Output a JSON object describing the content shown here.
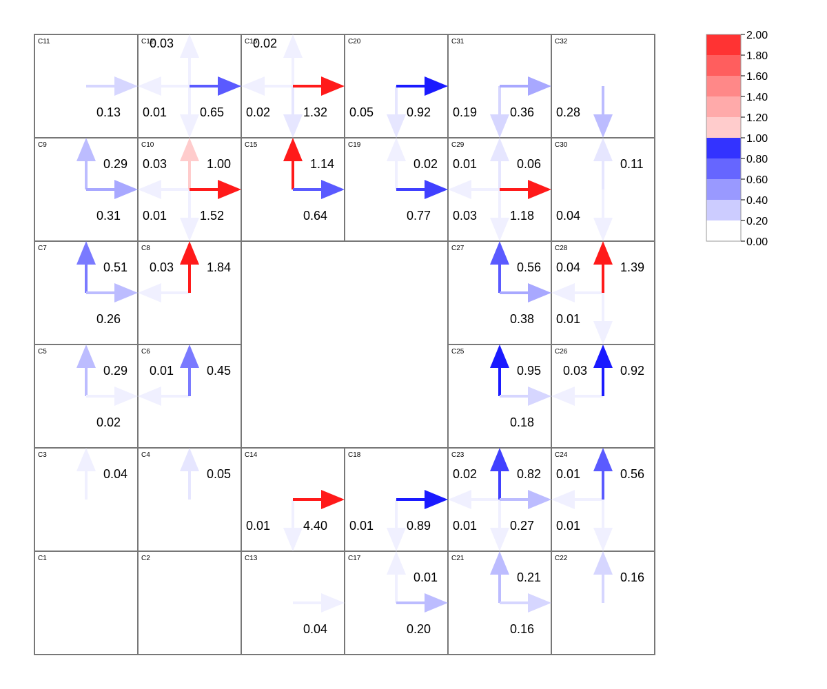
{
  "grid": {
    "cells": [
      {
        "id": "C11",
        "row": 0,
        "col": 0
      },
      {
        "id": "C12",
        "row": 0,
        "col": 1
      },
      {
        "id": "C16",
        "row": 0,
        "col": 2
      },
      {
        "id": "C20",
        "row": 0,
        "col": 3
      },
      {
        "id": "C31",
        "row": 0,
        "col": 4
      },
      {
        "id": "C32",
        "row": 0,
        "col": 5
      },
      {
        "id": "C9",
        "row": 1,
        "col": 0
      },
      {
        "id": "C10",
        "row": 1,
        "col": 1
      },
      {
        "id": "C15",
        "row": 1,
        "col": 2
      },
      {
        "id": "C19",
        "row": 1,
        "col": 3
      },
      {
        "id": "C29",
        "row": 1,
        "col": 4
      },
      {
        "id": "C30",
        "row": 1,
        "col": 5
      },
      {
        "id": "C7",
        "row": 2,
        "col": 0
      },
      {
        "id": "C8",
        "row": 2,
        "col": 1
      },
      {
        "id": "C27",
        "row": 2,
        "col": 4
      },
      {
        "id": "C28",
        "row": 2,
        "col": 5
      },
      {
        "id": "C5",
        "row": 3,
        "col": 0
      },
      {
        "id": "C6",
        "row": 3,
        "col": 1
      },
      {
        "id": "C25",
        "row": 3,
        "col": 4
      },
      {
        "id": "C26",
        "row": 3,
        "col": 5
      },
      {
        "id": "C3",
        "row": 4,
        "col": 0
      },
      {
        "id": "C4",
        "row": 4,
        "col": 1
      },
      {
        "id": "C14",
        "row": 4,
        "col": 2
      },
      {
        "id": "C18",
        "row": 4,
        "col": 3
      },
      {
        "id": "C23",
        "row": 4,
        "col": 4
      },
      {
        "id": "C24",
        "row": 4,
        "col": 5
      },
      {
        "id": "C1",
        "row": 5,
        "col": 0
      },
      {
        "id": "C2",
        "row": 5,
        "col": 1
      },
      {
        "id": "C13",
        "row": 5,
        "col": 2
      },
      {
        "id": "C17",
        "row": 5,
        "col": 3
      },
      {
        "id": "C21",
        "row": 5,
        "col": 4
      },
      {
        "id": "C22",
        "row": 5,
        "col": 5
      }
    ],
    "flows": [
      {
        "row": 0,
        "col": 0,
        "dir": "E",
        "value": 0.13,
        "label": "0.13"
      },
      {
        "row": 0,
        "col": 1,
        "dir": "W",
        "value": 0.01,
        "label": "0.01"
      },
      {
        "row": 0,
        "col": 1,
        "dir": "N",
        "value": 0.03,
        "label": "0.03"
      },
      {
        "row": 0,
        "col": 1,
        "dir": "S",
        "value": 0.03,
        "label": ""
      },
      {
        "row": 0,
        "col": 1,
        "dir": "E",
        "value": 0.65,
        "label": "0.65"
      },
      {
        "row": 0,
        "col": 2,
        "dir": "W",
        "value": 0.02,
        "label": "0.02"
      },
      {
        "row": 0,
        "col": 2,
        "dir": "N",
        "value": 0.02,
        "label": "0.02"
      },
      {
        "row": 0,
        "col": 2,
        "dir": "S",
        "value": 0.05,
        "label": ""
      },
      {
        "row": 0,
        "col": 2,
        "dir": "E",
        "value": 1.32,
        "label": "1.32"
      },
      {
        "row": 0,
        "col": 3,
        "dir": "S",
        "value": 0.05,
        "label": "0.05"
      },
      {
        "row": 0,
        "col": 3,
        "dir": "E",
        "value": 0.92,
        "label": "0.92"
      },
      {
        "row": 0,
        "col": 4,
        "dir": "S",
        "value": 0.19,
        "label": "0.19"
      },
      {
        "row": 0,
        "col": 4,
        "dir": "E",
        "value": 0.36,
        "label": "0.36"
      },
      {
        "row": 0,
        "col": 5,
        "dir": "S",
        "value": 0.28,
        "label": "0.28"
      },
      {
        "row": 1,
        "col": 0,
        "dir": "N",
        "value": 0.29,
        "label": "0.29"
      },
      {
        "row": 1,
        "col": 0,
        "dir": "E",
        "value": 0.31,
        "label": "0.31"
      },
      {
        "row": 1,
        "col": 1,
        "dir": "W",
        "value": 0.01,
        "label": "0.01"
      },
      {
        "row": 1,
        "col": 1,
        "dir": "S",
        "value": 0.03,
        "label": "0.03"
      },
      {
        "row": 1,
        "col": 1,
        "dir": "N",
        "value": 1.0,
        "label": "1.00"
      },
      {
        "row": 1,
        "col": 1,
        "dir": "E",
        "value": 1.52,
        "label": "1.52"
      },
      {
        "row": 1,
        "col": 2,
        "dir": "N",
        "value": 1.14,
        "label": "1.14"
      },
      {
        "row": 1,
        "col": 2,
        "dir": "E",
        "value": 0.64,
        "label": "0.64"
      },
      {
        "row": 1,
        "col": 3,
        "dir": "N",
        "value": 0.02,
        "label": "0.02"
      },
      {
        "row": 1,
        "col": 3,
        "dir": "E",
        "value": 0.77,
        "label": "0.77"
      },
      {
        "row": 1,
        "col": 4,
        "dir": "W",
        "value": 0.03,
        "label": "0.03"
      },
      {
        "row": 1,
        "col": 4,
        "dir": "S",
        "value": 0.01,
        "label": "0.01"
      },
      {
        "row": 1,
        "col": 4,
        "dir": "N",
        "value": 0.06,
        "label": "0.06"
      },
      {
        "row": 1,
        "col": 4,
        "dir": "E",
        "value": 1.18,
        "label": "1.18"
      },
      {
        "row": 1,
        "col": 5,
        "dir": "N",
        "value": 0.11,
        "label": "0.11"
      },
      {
        "row": 1,
        "col": 5,
        "dir": "S",
        "value": 0.04,
        "label": "0.04"
      },
      {
        "row": 2,
        "col": 0,
        "dir": "N",
        "value": 0.51,
        "label": "0.51"
      },
      {
        "row": 2,
        "col": 0,
        "dir": "E",
        "value": 0.26,
        "label": "0.26"
      },
      {
        "row": 2,
        "col": 1,
        "dir": "W",
        "value": 0.03,
        "label": "0.03"
      },
      {
        "row": 2,
        "col": 1,
        "dir": "N",
        "value": 1.84,
        "label": "1.84"
      },
      {
        "row": 2,
        "col": 4,
        "dir": "N",
        "value": 0.56,
        "label": "0.56"
      },
      {
        "row": 2,
        "col": 4,
        "dir": "E",
        "value": 0.38,
        "label": "0.38"
      },
      {
        "row": 2,
        "col": 5,
        "dir": "W",
        "value": 0.04,
        "label": "0.04"
      },
      {
        "row": 2,
        "col": 5,
        "dir": "S",
        "value": 0.01,
        "label": "0.01"
      },
      {
        "row": 2,
        "col": 5,
        "dir": "N",
        "value": 1.39,
        "label": "1.39"
      },
      {
        "row": 3,
        "col": 0,
        "dir": "N",
        "value": 0.29,
        "label": "0.29"
      },
      {
        "row": 3,
        "col": 0,
        "dir": "E",
        "value": 0.02,
        "label": "0.02"
      },
      {
        "row": 3,
        "col": 1,
        "dir": "W",
        "value": 0.01,
        "label": "0.01"
      },
      {
        "row": 3,
        "col": 1,
        "dir": "N",
        "value": 0.45,
        "label": "0.45"
      },
      {
        "row": 3,
        "col": 4,
        "dir": "N",
        "value": 0.95,
        "label": "0.95"
      },
      {
        "row": 3,
        "col": 4,
        "dir": "E",
        "value": 0.18,
        "label": "0.18"
      },
      {
        "row": 3,
        "col": 5,
        "dir": "W",
        "value": 0.03,
        "label": "0.03"
      },
      {
        "row": 3,
        "col": 5,
        "dir": "N",
        "value": 0.92,
        "label": "0.92"
      },
      {
        "row": 4,
        "col": 0,
        "dir": "N",
        "value": 0.04,
        "label": "0.04"
      },
      {
        "row": 4,
        "col": 1,
        "dir": "N",
        "value": 0.05,
        "label": "0.05"
      },
      {
        "row": 4,
        "col": 2,
        "dir": "S",
        "value": 0.01,
        "label": "0.01"
      },
      {
        "row": 4,
        "col": 2,
        "dir": "E",
        "value": 4.4,
        "label": "4.40"
      },
      {
        "row": 4,
        "col": 3,
        "dir": "S",
        "value": 0.01,
        "label": "0.01"
      },
      {
        "row": 4,
        "col": 3,
        "dir": "E",
        "value": 0.89,
        "label": "0.89"
      },
      {
        "row": 4,
        "col": 4,
        "dir": "W",
        "value": 0.02,
        "label": "0.02"
      },
      {
        "row": 4,
        "col": 4,
        "dir": "S",
        "value": 0.01,
        "label": "0.01"
      },
      {
        "row": 4,
        "col": 4,
        "dir": "N",
        "value": 0.82,
        "label": "0.82"
      },
      {
        "row": 4,
        "col": 4,
        "dir": "E",
        "value": 0.27,
        "label": "0.27"
      },
      {
        "row": 4,
        "col": 5,
        "dir": "W",
        "value": 0.01,
        "label": "0.01"
      },
      {
        "row": 4,
        "col": 5,
        "dir": "S",
        "value": 0.01,
        "label": "0.01"
      },
      {
        "row": 4,
        "col": 5,
        "dir": "N",
        "value": 0.56,
        "label": "0.56"
      },
      {
        "row": 5,
        "col": 2,
        "dir": "E",
        "value": 0.04,
        "label": "0.04"
      },
      {
        "row": 5,
        "col": 3,
        "dir": "N",
        "value": 0.01,
        "label": "0.01"
      },
      {
        "row": 5,
        "col": 3,
        "dir": "E",
        "value": 0.2,
        "label": "0.20"
      },
      {
        "row": 5,
        "col": 4,
        "dir": "N",
        "value": 0.21,
        "label": "0.21"
      },
      {
        "row": 5,
        "col": 4,
        "dir": "E",
        "value": 0.16,
        "label": "0.16"
      },
      {
        "row": 5,
        "col": 5,
        "dir": "N",
        "value": 0.16,
        "label": "0.16"
      }
    ]
  },
  "legend": {
    "bands": [
      {
        "from": 0.0,
        "to": 0.2,
        "color": "#ffffff"
      },
      {
        "from": 0.2,
        "to": 0.4,
        "color": "#ccccff"
      },
      {
        "from": 0.4,
        "to": 0.6,
        "color": "#9999ff"
      },
      {
        "from": 0.6,
        "to": 0.8,
        "color": "#6666ff"
      },
      {
        "from": 0.8,
        "to": 1.0,
        "color": "#3333ff"
      },
      {
        "from": 1.0,
        "to": 1.2,
        "color": "#ffcccc"
      },
      {
        "from": 1.2,
        "to": 1.4,
        "color": "#ffaaaa"
      },
      {
        "from": 1.4,
        "to": 1.6,
        "color": "#ff8888"
      },
      {
        "from": 1.6,
        "to": 1.8,
        "color": "#ff5e5e"
      },
      {
        "from": 1.8,
        "to": 2.0,
        "color": "#ff3333"
      }
    ],
    "tick_labels": [
      "0.00",
      "0.20",
      "0.40",
      "0.60",
      "0.80",
      "1.00",
      "1.20",
      "1.40",
      "1.60",
      "1.80",
      "2.00"
    ]
  },
  "colors": {
    "strong_blue": "#1a1aff",
    "strong_red": "#ff1a1a",
    "faint": "#f0f0ff",
    "grid_line": "#777777",
    "text": "#000000"
  }
}
